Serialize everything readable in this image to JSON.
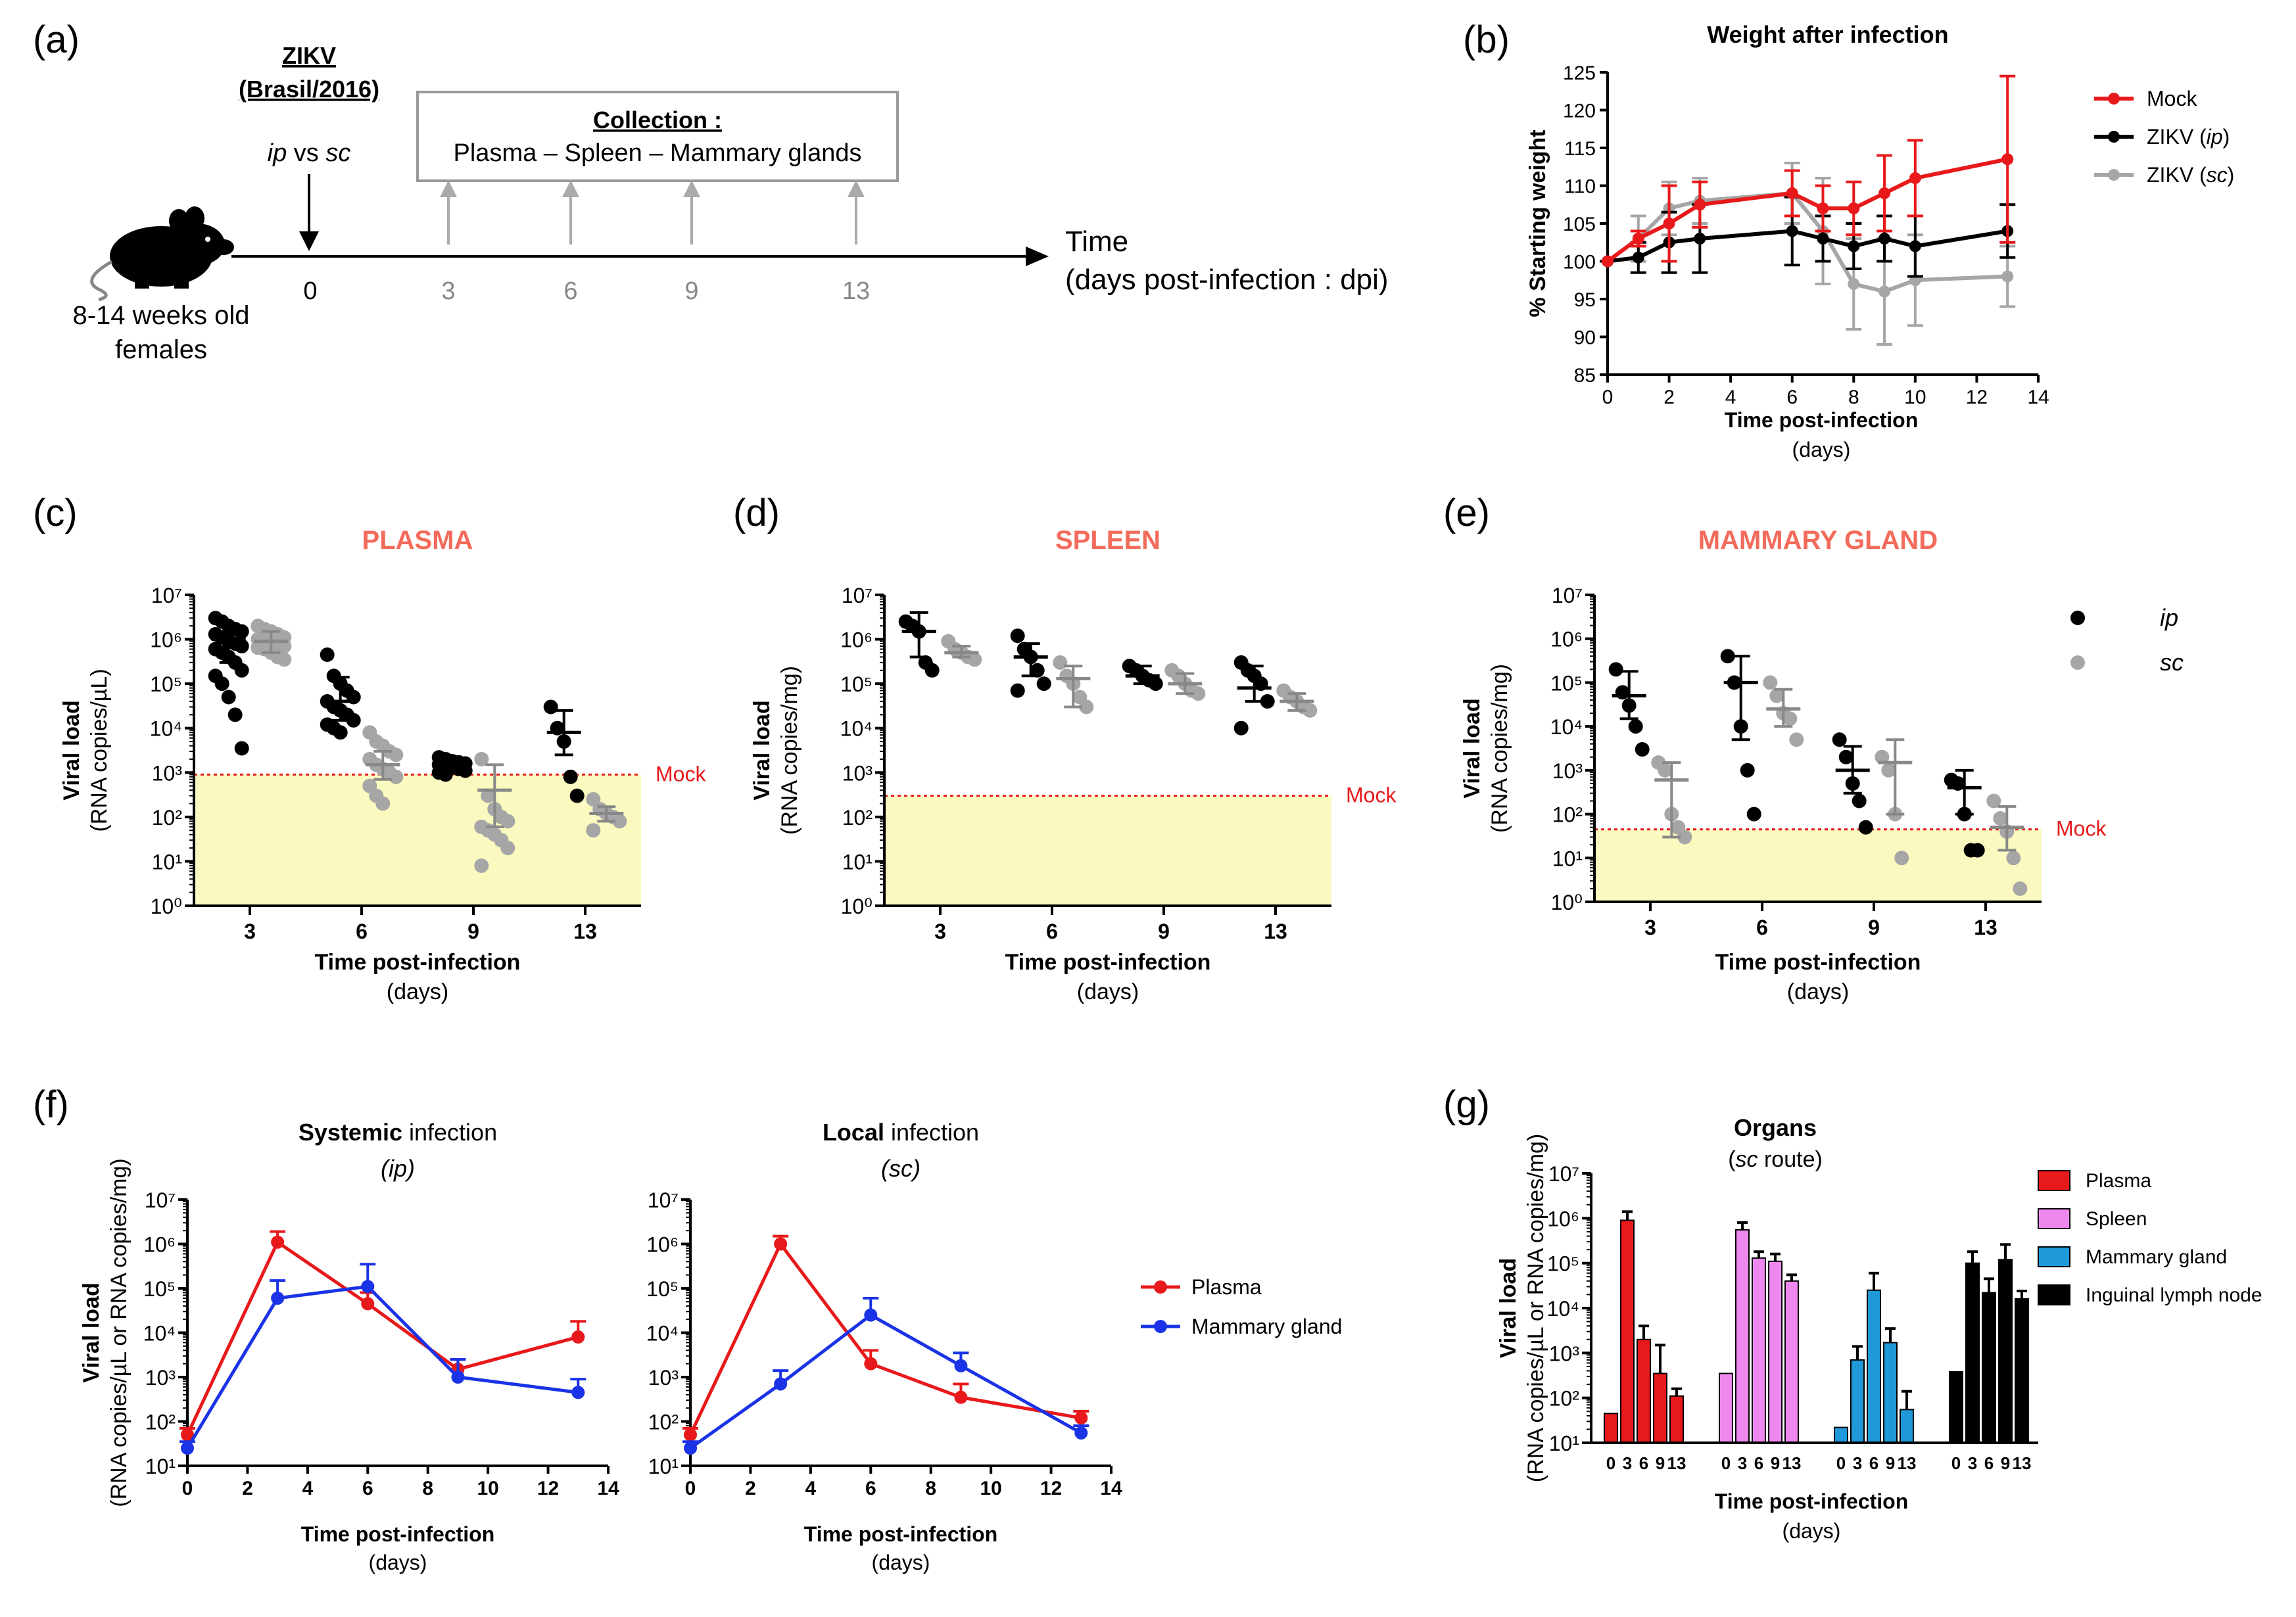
{
  "colors": {
    "red": "#e8191b",
    "black": "#000000",
    "grey": "#a6a6a6",
    "blue": "#1a33e6",
    "pink": "#ee88ee",
    "cyan": "#1f99d9",
    "band": "#fafac0",
    "mock_line": "#e8191b",
    "title_orange": "#f26b5b"
  },
  "panel_labels": {
    "a": "(a)",
    "b": "(b)",
    "c": "(c)",
    "d": "(d)",
    "e": "(e)",
    "f": "(f)",
    "g": "(g)"
  },
  "design": {
    "virus_line1": "ZIKV",
    "virus_line2": "(Brasil/2016)",
    "route_ip": "ip",
    "route_vs": " vs ",
    "route_sc": "sc",
    "collection_title": "Collection :",
    "collection_items": "Plasma – Spleen – Mammary glands",
    "time_label": "Time",
    "time_sub": "(days post-infection : dpi)",
    "mouse_caption_1": "8-14 weeks old",
    "mouse_caption_2": "females",
    "day0": "0",
    "timepoints": [
      "3",
      "6",
      "9",
      "13"
    ]
  },
  "chart_data": [
    {
      "panel": "b",
      "type": "line",
      "title": "Weight after infection",
      "xlabel": "Time post-infection",
      "xlabel_sub": "(days)",
      "ylabel": "% Starting weight",
      "xlim": [
        0,
        14
      ],
      "ylim": [
        85,
        125
      ],
      "xticks": [
        "0",
        "2",
        "4",
        "6",
        "8",
        "10",
        "12",
        "14"
      ],
      "yticks": [
        "85",
        "90",
        "95",
        "100",
        "105",
        "110",
        "115",
        "120",
        "125"
      ],
      "legend": [
        "Mock",
        "ZIKV (ip)",
        "ZIKV (sc)"
      ],
      "series": [
        {
          "name": "ZIKV (sc)",
          "color": "grey",
          "x": [
            0,
            1,
            2,
            3,
            6,
            7,
            8,
            9,
            10,
            13
          ],
          "y": [
            100,
            103,
            107,
            108,
            109,
            104,
            97,
            96,
            97.5,
            98
          ],
          "err": [
            0,
            3,
            3.5,
            3,
            4,
            7,
            6,
            7,
            6,
            4
          ]
        },
        {
          "name": "ZIKV (ip)",
          "color": "black",
          "x": [
            0,
            1,
            2,
            3,
            6,
            7,
            8,
            9,
            10,
            13
          ],
          "y": [
            100,
            100.5,
            102.5,
            103,
            104,
            103,
            102,
            103,
            102,
            104
          ],
          "err": [
            0,
            2,
            4,
            4.5,
            4.5,
            3,
            3,
            3,
            4,
            3.5
          ]
        },
        {
          "name": "Mock",
          "color": "red",
          "x": [
            0,
            1,
            2,
            3,
            6,
            7,
            8,
            9,
            10,
            13
          ],
          "y": [
            100,
            103,
            105,
            107.5,
            109,
            107,
            107,
            109,
            111,
            113.5
          ],
          "err": [
            0,
            1,
            5,
            3,
            3,
            3,
            3.5,
            5,
            5,
            11
          ]
        }
      ]
    },
    {
      "panel": "c",
      "type": "scatter",
      "title": "PLASMA",
      "ylabel": "Viral load",
      "ylabel_sub": "(RNA copies/µL)",
      "xlabel": "Time post-infection",
      "xlabel_sub": "(days)",
      "categories": [
        "3",
        "6",
        "9",
        "13"
      ],
      "ylim_log10": [
        0,
        7
      ],
      "ytick_labels": [
        "10⁰",
        "10¹",
        "10²",
        "10³",
        "10⁴",
        "10⁵",
        "10⁶",
        "10⁷"
      ],
      "mock_level": 900,
      "mock_label": "Mock",
      "groups": [
        {
          "cat": 0,
          "route": "ip",
          "mean": 1000000,
          "lo": 300000,
          "hi": 2200000,
          "points": [
            3000000,
            2500000,
            2000000,
            1700000,
            1500000,
            1300000,
            1100000,
            900000,
            800000,
            700000,
            600000,
            500000,
            400000,
            300000,
            200000,
            150000,
            100000,
            50000,
            20000,
            3500
          ]
        },
        {
          "cat": 0,
          "route": "sc",
          "mean": 900000,
          "lo": 500000,
          "hi": 1500000,
          "points": [
            2000000,
            1700000,
            1500000,
            1300000,
            1100000,
            1000000,
            900000,
            850000,
            800000,
            700000,
            650000,
            600000,
            500000,
            400000,
            350000
          ]
        },
        {
          "cat": 1,
          "route": "ip",
          "mean": 40000,
          "lo": 15000,
          "hi": 140000,
          "points": [
            450000,
            150000,
            100000,
            70000,
            50000,
            40000,
            30000,
            25000,
            20000,
            15000,
            12000,
            10000,
            8000
          ]
        },
        {
          "cat": 1,
          "route": "sc",
          "mean": 1500,
          "lo": 700,
          "hi": 3000,
          "points": [
            8000,
            5000,
            4000,
            3000,
            2500,
            2000,
            1500,
            1200,
            1000,
            800,
            500,
            300,
            200
          ]
        },
        {
          "cat": 2,
          "route": "ip",
          "mean": 1500,
          "lo": 1200,
          "hi": 1900,
          "points": [
            2200,
            2000,
            1800,
            1700,
            1600,
            1500,
            1400,
            1300,
            1200,
            1100,
            1000,
            900
          ]
        },
        {
          "cat": 2,
          "route": "sc",
          "mean": 400,
          "lo": 60,
          "hi": 1500,
          "points": [
            2000,
            300,
            150,
            100,
            80,
            60,
            50,
            40,
            30,
            20,
            8
          ]
        },
        {
          "cat": 3,
          "route": "ip",
          "mean": 8000,
          "lo": 2500,
          "hi": 25000,
          "points": [
            30000,
            10000,
            5000,
            800,
            300
          ]
        },
        {
          "cat": 3,
          "route": "sc",
          "mean": 120,
          "lo": 80,
          "hi": 170,
          "points": [
            250,
            150,
            120,
            100,
            80,
            50
          ]
        }
      ]
    },
    {
      "panel": "d",
      "type": "scatter",
      "title": "SPLEEN",
      "ylabel": "Viral load",
      "ylabel_sub": "(RNA copies/mg)",
      "xlabel": "Time post-infection",
      "xlabel_sub": "(days)",
      "categories": [
        "3",
        "6",
        "9",
        "13"
      ],
      "ylim_log10": [
        0,
        7
      ],
      "ytick_labels": [
        "10⁰",
        "10¹",
        "10²",
        "10³",
        "10⁴",
        "10⁵",
        "10⁶",
        "10⁷"
      ],
      "mock_level": 300,
      "mock_label": "Mock",
      "groups": [
        {
          "cat": 0,
          "route": "ip",
          "mean": 1500000,
          "lo": 400000,
          "hi": 4000000,
          "points": [
            2500000,
            2000000,
            1500000,
            300000,
            200000
          ]
        },
        {
          "cat": 0,
          "route": "sc",
          "mean": 500000,
          "lo": 400000,
          "hi": 700000,
          "points": [
            900000,
            600000,
            500000,
            400000,
            350000
          ]
        },
        {
          "cat": 1,
          "route": "ip",
          "mean": 400000,
          "lo": 150000,
          "hi": 800000,
          "points": [
            1200000,
            600000,
            400000,
            200000,
            100000,
            70000
          ]
        },
        {
          "cat": 1,
          "route": "sc",
          "mean": 130000,
          "lo": 30000,
          "hi": 250000,
          "points": [
            300000,
            150000,
            100000,
            50000,
            30000
          ]
        },
        {
          "cat": 2,
          "route": "ip",
          "mean": 150000,
          "lo": 100000,
          "hi": 250000,
          "points": [
            250000,
            200000,
            150000,
            120000,
            100000
          ]
        },
        {
          "cat": 2,
          "route": "sc",
          "mean": 100000,
          "lo": 60000,
          "hi": 170000,
          "points": [
            200000,
            150000,
            100000,
            70000,
            60000
          ]
        },
        {
          "cat": 3,
          "route": "ip",
          "mean": 80000,
          "lo": 40000,
          "hi": 250000,
          "points": [
            300000,
            200000,
            150000,
            100000,
            40000,
            10000
          ]
        },
        {
          "cat": 3,
          "route": "sc",
          "mean": 40000,
          "lo": 25000,
          "hi": 60000,
          "points": [
            70000,
            50000,
            40000,
            30000,
            25000
          ]
        }
      ]
    },
    {
      "panel": "e",
      "type": "scatter",
      "title": "MAMMARY GLAND",
      "ylabel": "Viral load",
      "ylabel_sub": "(RNA copies/mg)",
      "xlabel": "Time post-infection",
      "xlabel_sub": "(days)",
      "categories": [
        "3",
        "6",
        "9",
        "13"
      ],
      "ylim_log10": [
        0,
        7
      ],
      "ytick_labels": [
        "10⁰",
        "10¹",
        "10²",
        "10³",
        "10⁴",
        "10⁵",
        "10⁶",
        "10⁷"
      ],
      "mock_level": 45,
      "mock_label": "Mock",
      "legend": [
        "ip",
        "sc"
      ],
      "groups": [
        {
          "cat": 0,
          "route": "ip",
          "mean": 50000,
          "lo": 15000,
          "hi": 180000,
          "points": [
            200000,
            60000,
            30000,
            10000,
            3000
          ]
        },
        {
          "cat": 0,
          "route": "sc",
          "mean": 600,
          "lo": 30,
          "hi": 1500,
          "points": [
            1500,
            1000,
            100,
            50,
            30
          ]
        },
        {
          "cat": 1,
          "route": "ip",
          "mean": 100000,
          "lo": 5000,
          "hi": 400000,
          "points": [
            400000,
            100000,
            10000,
            1000,
            100
          ]
        },
        {
          "cat": 1,
          "route": "sc",
          "mean": 25000,
          "lo": 10000,
          "hi": 70000,
          "points": [
            100000,
            50000,
            20000,
            15000,
            5000
          ]
        },
        {
          "cat": 2,
          "route": "ip",
          "mean": 1000,
          "lo": 300,
          "hi": 3500,
          "points": [
            5000,
            2000,
            500,
            200,
            50
          ]
        },
        {
          "cat": 2,
          "route": "sc",
          "mean": 1500,
          "lo": 100,
          "hi": 5000,
          "points": [
            2000,
            1000,
            100,
            10
          ]
        },
        {
          "cat": 3,
          "route": "ip",
          "mean": 400,
          "lo": 100,
          "hi": 1000,
          "points": [
            600,
            500,
            100,
            15,
            15
          ]
        },
        {
          "cat": 3,
          "route": "sc",
          "mean": 50,
          "lo": 15,
          "hi": 150,
          "points": [
            200,
            80,
            40,
            10,
            2
          ]
        }
      ]
    },
    {
      "panel": "f1",
      "type": "line",
      "title_bold": "Systemic",
      "title_rest": " infection",
      "subtitle": "(ip)",
      "ylabel": "Viral load",
      "ylabel_sub": "(RNA copies/µL or RNA copies/mg)",
      "xlabel": "Time post-infection",
      "xlabel_sub": "(days)",
      "xlim": [
        0,
        14
      ],
      "ylim_log10": [
        1,
        7
      ],
      "xticks": [
        "0",
        "2",
        "4",
        "6",
        "8",
        "10",
        "12",
        "14"
      ],
      "ytick_labels": [
        "10¹",
        "10²",
        "10³",
        "10⁴",
        "10⁵",
        "10⁶",
        "10⁷"
      ],
      "series": [
        {
          "name": "Plasma",
          "color": "red",
          "x": [
            0,
            3,
            6,
            9,
            13
          ],
          "y": [
            50,
            1100000,
            45000,
            1500,
            8000
          ],
          "err_hi": [
            70,
            1900000,
            80000,
            2500,
            18000
          ]
        },
        {
          "name": "Mammary gland",
          "color": "blue",
          "x": [
            0,
            3,
            6,
            9,
            13
          ],
          "y": [
            25,
            60000,
            110000,
            1000,
            450
          ],
          "err_hi": [
            35,
            150000,
            350000,
            2500,
            900
          ]
        }
      ]
    },
    {
      "panel": "f2",
      "type": "line",
      "title_bold": "Local",
      "title_rest": " infection",
      "subtitle": "(sc)",
      "xlabel": "Time post-infection",
      "xlabel_sub": "(days)",
      "xlim": [
        0,
        14
      ],
      "ylim_log10": [
        1,
        7
      ],
      "xticks": [
        "0",
        "2",
        "4",
        "6",
        "8",
        "10",
        "12",
        "14"
      ],
      "ytick_labels": [
        "10¹",
        "10²",
        "10³",
        "10⁴",
        "10⁵",
        "10⁶",
        "10⁷"
      ],
      "legend": [
        "Plasma",
        "Mammary gland"
      ],
      "series": [
        {
          "name": "Plasma",
          "color": "red",
          "x": [
            0,
            3,
            6,
            9,
            13
          ],
          "y": [
            50,
            1000000,
            2000,
            350,
            120
          ],
          "err_hi": [
            70,
            1500000,
            4000,
            700,
            170
          ]
        },
        {
          "name": "Mammary gland",
          "color": "blue",
          "x": [
            0,
            3,
            6,
            9,
            13
          ],
          "y": [
            25,
            700,
            25000,
            1800,
            55
          ],
          "err_hi": [
            35,
            1400,
            60000,
            3500,
            80
          ]
        }
      ]
    },
    {
      "panel": "g",
      "type": "bar",
      "title": "Organs",
      "subtitle_route": "sc",
      "subtitle_rest": " route",
      "ylabel": "Viral load",
      "ylabel_sub": "(RNA copies/µL or RNA copies/mg)",
      "xlabel": "Time post-infection",
      "xlabel_sub": "(days)",
      "ylim_log10": [
        1,
        7
      ],
      "ytick_labels": [
        "10¹",
        "10²",
        "10³",
        "10⁴",
        "10⁵",
        "10⁶",
        "10⁷"
      ],
      "categories": [
        "0",
        "3",
        "6",
        "9",
        "13"
      ],
      "legend": [
        "Plasma",
        "Spleen",
        "Mammary gland",
        "Inguinal lymph node"
      ],
      "series": [
        {
          "name": "Plasma",
          "color": "red",
          "values": [
            45,
            900000,
            2000,
            350,
            110
          ],
          "err_hi": [
            45,
            1400000,
            4000,
            1500,
            160
          ]
        },
        {
          "name": "Spleen",
          "color": "pink",
          "values": [
            350,
            550000,
            130000,
            110000,
            40000
          ],
          "err_hi": [
            350,
            800000,
            180000,
            160000,
            55000
          ]
        },
        {
          "name": "Mammary gland",
          "color": "cyan",
          "values": [
            22,
            700,
            25000,
            1700,
            55
          ],
          "err_hi": [
            22,
            1400,
            60000,
            3500,
            140
          ]
        },
        {
          "name": "Inguinal lymph node",
          "color": "black",
          "values": [
            380,
            100000,
            22000,
            120000,
            16000
          ],
          "err_hi": [
            380,
            180000,
            45000,
            260000,
            24000
          ]
        }
      ]
    }
  ]
}
